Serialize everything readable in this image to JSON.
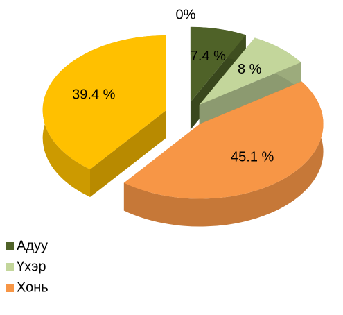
{
  "chart_data": {
    "type": "pie3d",
    "categories": [
      "Адуу",
      "Үхэр",
      "Хонь",
      null,
      null
    ],
    "values": [
      7.4,
      8,
      45.1,
      39.4,
      0
    ],
    "value_labels": [
      "7.4 %",
      "8 %",
      "45.1 %",
      "39.4 %",
      "0%"
    ],
    "colors": [
      "#4f6228",
      "#c3d69b",
      "#f79646",
      "#ffc000",
      "#4bacc6"
    ],
    "legend": "bottom-left"
  }
}
